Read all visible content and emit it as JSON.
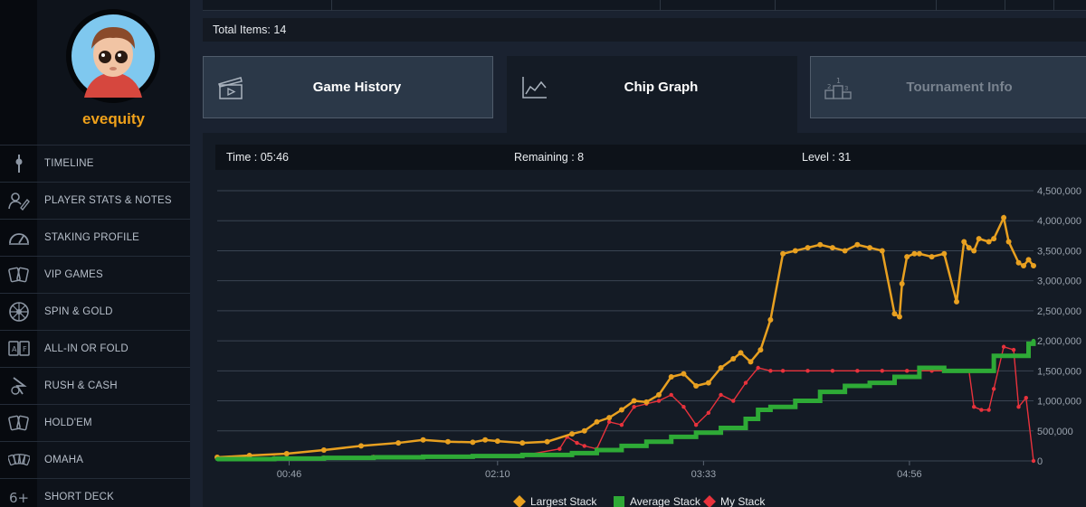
{
  "profile": {
    "username": "evequity"
  },
  "sidebar": {
    "items": [
      {
        "label": "TIMELINE",
        "icon": "timeline-icon"
      },
      {
        "label": "PLAYER STATS & NOTES",
        "icon": "notes-icon"
      },
      {
        "label": "STAKING PROFILE",
        "icon": "gauge-icon"
      },
      {
        "label": "VIP GAMES",
        "icon": "cards-icon"
      },
      {
        "label": "SPIN & GOLD",
        "icon": "wheel-icon"
      },
      {
        "label": "ALL-IN OR FOLD",
        "icon": "allin-icon"
      },
      {
        "label": "RUSH & CASH",
        "icon": "rush-icon"
      },
      {
        "label": "HOLD'EM",
        "icon": "holdem-icon"
      },
      {
        "label": "OMAHA",
        "icon": "omaha-icon"
      },
      {
        "label": "SHORT DECK",
        "icon": "shortdeck-icon"
      }
    ]
  },
  "summary": {
    "total_items": "Total Items: 14"
  },
  "tabs": [
    {
      "label": "Game History",
      "icon": "clapperboard-icon",
      "active": false
    },
    {
      "label": "Chip Graph",
      "icon": "line-chart-icon",
      "active": true
    },
    {
      "label": "Tournament Info",
      "icon": "podium-icon",
      "active": false
    }
  ],
  "info": {
    "time": "Time : 05:46",
    "remaining": "Remaining : 8",
    "level": "Level : 31"
  },
  "colors": {
    "accent": "#f0a11a",
    "largest": "#e8a020",
    "average": "#2eaa36",
    "mine": "#e8323c"
  },
  "chart_data": {
    "type": "line",
    "title": "",
    "xlabel": "",
    "ylabel": "",
    "x_ticks": [
      "00:46",
      "02:10",
      "03:33",
      "04:56"
    ],
    "x_tick_minutes": [
      46,
      130,
      213,
      296
    ],
    "xlim": [
      17,
      346
    ],
    "ylim": [
      0,
      4500000
    ],
    "y_ticks": [
      0,
      500000,
      1000000,
      1500000,
      2000000,
      2500000,
      3000000,
      3500000,
      4000000,
      4500000
    ],
    "y_tick_labels": [
      "0",
      "500,000",
      "1,000,000",
      "1,500,000",
      "2,000,000",
      "2,500,000",
      "3,000,000",
      "3,500,000",
      "4,000,000",
      "4,500,000"
    ],
    "grid": true,
    "legend_position": "bottom-center",
    "series": [
      {
        "name": "Largest Stack",
        "color": "#e8a020",
        "x": [
          17,
          30,
          45,
          60,
          75,
          90,
          100,
          110,
          120,
          125,
          130,
          140,
          150,
          160,
          165,
          170,
          175,
          180,
          185,
          190,
          195,
          200,
          205,
          210,
          215,
          220,
          225,
          228,
          232,
          236,
          240,
          245,
          250,
          255,
          260,
          265,
          270,
          275,
          280,
          285,
          290,
          292,
          293,
          295,
          298,
          300,
          305,
          310,
          315,
          318,
          320,
          322,
          324,
          328,
          330,
          334,
          336,
          340,
          342,
          344,
          346
        ],
        "y": [
          60000,
          90000,
          120000,
          180000,
          250000,
          300000,
          350000,
          320000,
          310000,
          350000,
          330000,
          300000,
          320000,
          450000,
          500000,
          650000,
          720000,
          850000,
          1000000,
          980000,
          1100000,
          1400000,
          1450000,
          1250000,
          1300000,
          1550000,
          1700000,
          1800000,
          1650000,
          1850000,
          2350000,
          3450000,
          3500000,
          3550000,
          3600000,
          3550000,
          3500000,
          3600000,
          3550000,
          3500000,
          2450000,
          2400000,
          2950000,
          3400000,
          3450000,
          3450000,
          3400000,
          3450000,
          2650000,
          3650000,
          3550000,
          3500000,
          3700000,
          3650000,
          3700000,
          4050000,
          3650000,
          3300000,
          3250000,
          3350000,
          3250000
        ]
      },
      {
        "name": "Average Stack",
        "color": "#2eaa36",
        "x": [
          17,
          40,
          60,
          80,
          100,
          120,
          140,
          160,
          170,
          180,
          190,
          200,
          210,
          220,
          230,
          235,
          240,
          250,
          260,
          270,
          280,
          290,
          300,
          310,
          320,
          326,
          330,
          336,
          340,
          344,
          346
        ],
        "y": [
          30000,
          40000,
          50000,
          60000,
          70000,
          80000,
          100000,
          130000,
          180000,
          250000,
          320000,
          400000,
          470000,
          550000,
          700000,
          850000,
          900000,
          1000000,
          1150000,
          1250000,
          1300000,
          1400000,
          1550000,
          1500000,
          1500000,
          1500000,
          1750000,
          1750000,
          1750000,
          1950000,
          2000000
        ]
      },
      {
        "name": "My Stack",
        "color": "#e8323c",
        "x": [
          17,
          40,
          60,
          80,
          100,
          120,
          140,
          155,
          158,
          162,
          165,
          170,
          175,
          180,
          185,
          190,
          195,
          200,
          205,
          210,
          215,
          220,
          225,
          230,
          235,
          240,
          245,
          255,
          265,
          275,
          285,
          295,
          305,
          315,
          320,
          322,
          325,
          328,
          330,
          334,
          338,
          340,
          343,
          346
        ],
        "y": [
          40000,
          50000,
          60000,
          70000,
          60000,
          80000,
          90000,
          200000,
          400000,
          300000,
          250000,
          200000,
          650000,
          600000,
          900000,
          950000,
          1000000,
          1100000,
          900000,
          600000,
          800000,
          1100000,
          1000000,
          1300000,
          1550000,
          1500000,
          1500000,
          1500000,
          1500000,
          1500000,
          1500000,
          1500000,
          1500000,
          1500000,
          1500000,
          900000,
          850000,
          850000,
          1200000,
          1900000,
          1850000,
          900000,
          1050000,
          0
        ]
      }
    ]
  }
}
